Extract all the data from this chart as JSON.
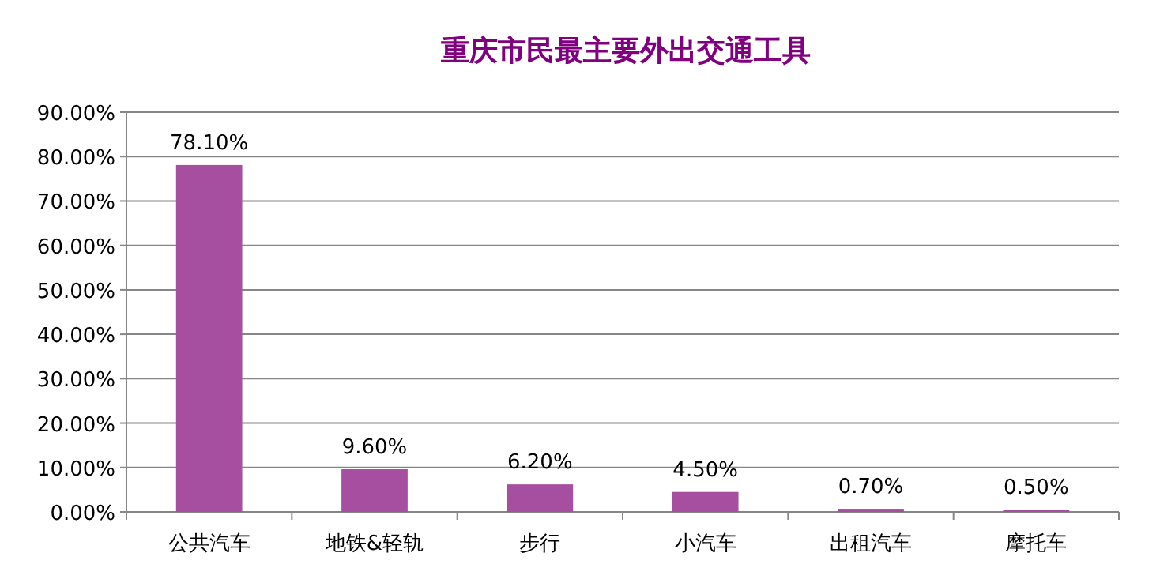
{
  "chart_data": {
    "type": "bar",
    "title": "重庆市民最主要外出交通工具",
    "categories": [
      "公共汽车",
      "地铁&轻轨",
      "步行",
      "小汽车",
      "出租汽车",
      "摩托车"
    ],
    "values": [
      78.1,
      9.6,
      6.2,
      4.5,
      0.7,
      0.5
    ],
    "value_labels": [
      "78.10%",
      "9.60%",
      "6.20%",
      "4.50%",
      "0.70%",
      "0.50%"
    ],
    "color": "#a64fa0",
    "ylim": [
      0,
      90
    ],
    "yticks": [
      {
        "value": 0,
        "label": "0.00%"
      },
      {
        "value": 10,
        "label": "10.00%"
      },
      {
        "value": 20,
        "label": "20.00%"
      },
      {
        "value": 30,
        "label": "30.00%"
      },
      {
        "value": 40,
        "label": "40.00%"
      },
      {
        "value": 50,
        "label": "50.00%"
      },
      {
        "value": 60,
        "label": "60.00%"
      },
      {
        "value": 70,
        "label": "70.00%"
      },
      {
        "value": 80,
        "label": "80.00%"
      },
      {
        "value": 90,
        "label": "90.00%"
      }
    ],
    "grid": "y"
  }
}
